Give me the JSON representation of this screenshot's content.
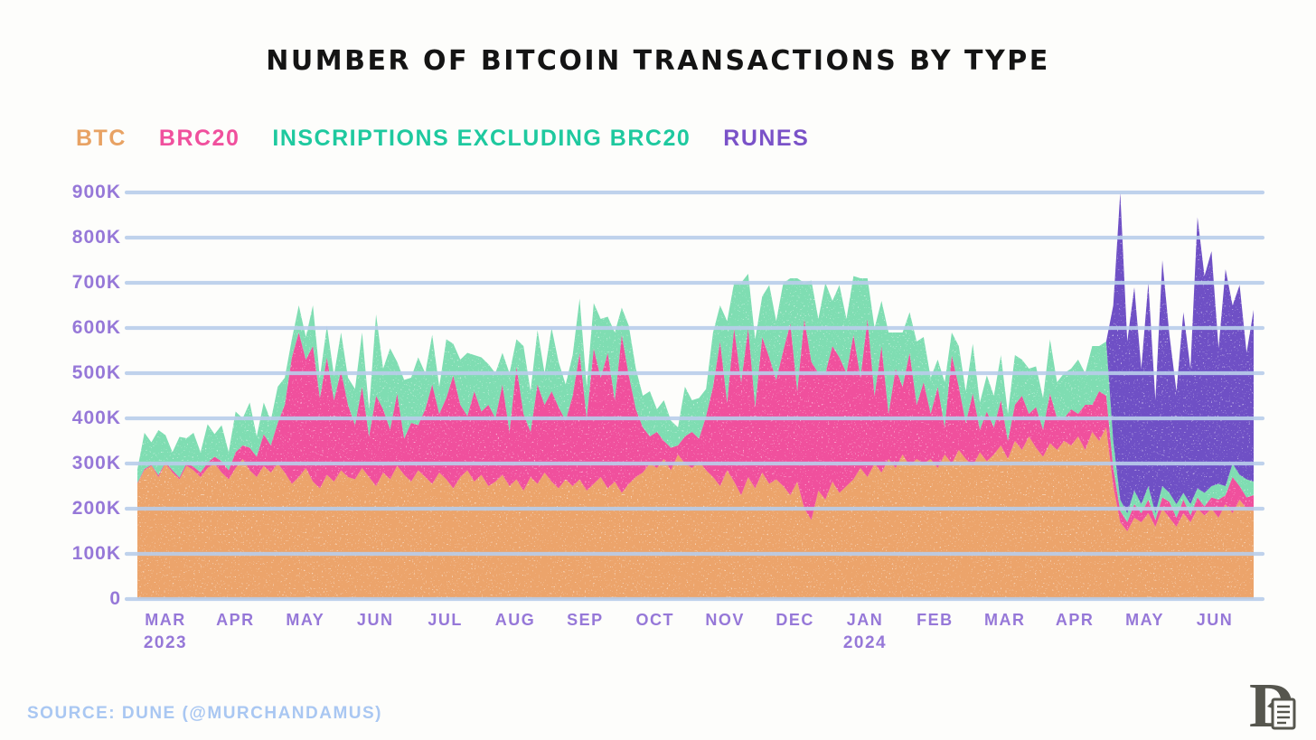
{
  "title": "NUMBER OF BITCOIN TRANSACTIONS BY TYPE",
  "source": "SOURCE: DUNE (@MURCHANDAMUS)",
  "colors": {
    "background": "#FDFDFB",
    "title": "#141414",
    "grid": "#B9CEEB",
    "axis_label": "#9678D8",
    "source_text": "#A9C7F2",
    "logo": "#56564E"
  },
  "chart_data": {
    "type": "area",
    "stacked": true,
    "grid": "horizontal",
    "legend_position": "top-left",
    "note": "values in thousands of transactions per day, estimated from chart at ~3-day intervals, Mar 2023 - Jun 2024",
    "ylabel": "",
    "xlabel": "",
    "ylim": [
      0,
      900
    ],
    "y_ticks": [
      "0",
      "100K",
      "200K",
      "300K",
      "400K",
      "500K",
      "600K",
      "700K",
      "800K",
      "900K"
    ],
    "x_ticks": [
      {
        "label": "MAR",
        "year": "2023"
      },
      {
        "label": "APR"
      },
      {
        "label": "MAY"
      },
      {
        "label": "JUN"
      },
      {
        "label": "JUL"
      },
      {
        "label": "AUG"
      },
      {
        "label": "SEP"
      },
      {
        "label": "OCT"
      },
      {
        "label": "NOV"
      },
      {
        "label": "DEC"
      },
      {
        "label": "JAN",
        "year": "2024"
      },
      {
        "label": "FEB"
      },
      {
        "label": "MAR"
      },
      {
        "label": "APR"
      },
      {
        "label": "MAY"
      },
      {
        "label": "JUN"
      }
    ],
    "series": [
      {
        "id": "btc",
        "label": "BTC",
        "color": "#ECA46B",
        "legend_color": "#E8A263",
        "values": [
          255,
          285,
          295,
          270,
          300,
          280,
          265,
          295,
          285,
          270,
          290,
          300,
          280,
          265,
          290,
          310,
          285,
          270,
          295,
          280,
          300,
          280,
          255,
          270,
          290,
          260,
          245,
          275,
          260,
          285,
          270,
          265,
          290,
          270,
          250,
          280,
          265,
          295,
          275,
          260,
          285,
          270,
          255,
          280,
          265,
          245,
          270,
          285,
          260,
          275,
          250,
          260,
          275,
          250,
          265,
          240,
          270,
          255,
          280,
          260,
          245,
          265,
          250,
          265,
          240,
          255,
          270,
          245,
          260,
          235,
          255,
          270,
          280,
          300,
          290,
          310,
          285,
          320,
          300,
          290,
          305,
          285,
          270,
          250,
          285,
          260,
          230,
          270,
          245,
          280,
          255,
          265,
          250,
          230,
          260,
          200,
          175,
          240,
          220,
          260,
          235,
          250,
          265,
          290,
          270,
          300,
          280,
          310,
          290,
          320,
          295,
          310,
          300,
          310,
          290,
          320,
          300,
          330,
          310,
          295,
          325,
          305,
          320,
          340,
          310,
          350,
          330,
          360,
          335,
          315,
          345,
          330,
          350,
          340,
          360,
          330,
          370,
          350,
          380,
          250,
          170,
          150,
          180,
          170,
          190,
          160,
          200,
          180,
          160,
          190,
          170,
          200,
          185,
          200,
          180,
          210,
          190,
          220,
          200,
          195
        ]
      },
      {
        "id": "brc20",
        "label": "BRC20",
        "color": "#F0509D",
        "legend_color": "#F0509D",
        "values": [
          2,
          3,
          2,
          4,
          3,
          5,
          4,
          6,
          8,
          10,
          12,
          15,
          25,
          20,
          35,
          30,
          50,
          45,
          70,
          60,
          90,
          150,
          280,
          320,
          240,
          300,
          200,
          260,
          180,
          220,
          160,
          120,
          180,
          90,
          200,
          140,
          110,
          160,
          80,
          130,
          100,
          150,
          220,
          130,
          180,
          250,
          160,
          120,
          200,
          140,
          180,
          140,
          200,
          120,
          250,
          170,
          100,
          220,
          150,
          200,
          180,
          130,
          200,
          280,
          160,
          300,
          220,
          300,
          180,
          350,
          240,
          150,
          100,
          60,
          80,
          40,
          50,
          20,
          60,
          80,
          50,
          120,
          200,
          320,
          150,
          340,
          250,
          330,
          180,
          300,
          280,
          220,
          300,
          380,
          200,
          420,
          350,
          260,
          280,
          300,
          300,
          250,
          320,
          200,
          350,
          150,
          280,
          100,
          220,
          150,
          250,
          120,
          180,
          100,
          180,
          60,
          240,
          140,
          80,
          160,
          50,
          110,
          60,
          100,
          40,
          80,
          120,
          50,
          90,
          60,
          110,
          70,
          50,
          80,
          50,
          100,
          60,
          110,
          70,
          40,
          25,
          20,
          30,
          20,
          30,
          15,
          25,
          35,
          20,
          30,
          15,
          25,
          20,
          25,
          40,
          20,
          80,
          30,
          25,
          35
        ]
      },
      {
        "id": "inscriptions",
        "label": "INSCRIPTIONS EXCLUDING BRC20",
        "color": "#7FDDB2",
        "legend_color": "#1EC99F",
        "values": [
          30,
          80,
          50,
          100,
          60,
          40,
          90,
          55,
          75,
          45,
          85,
          50,
          80,
          40,
          90,
          60,
          100,
          45,
          70,
          55,
          80,
          60,
          40,
          60,
          50,
          90,
          45,
          70,
          55,
          85,
          60,
          80,
          120,
          60,
          180,
          90,
          180,
          70,
          130,
          100,
          150,
          80,
          110,
          60,
          130,
          70,
          100,
          140,
          80,
          120,
          90,
          100,
          70,
          130,
          60,
          150,
          90,
          120,
          70,
          140,
          100,
          80,
          90,
          120,
          70,
          100,
          130,
          80,
          150,
          60,
          110,
          90,
          70,
          100,
          50,
          90,
          60,
          40,
          110,
          70,
          90,
          60,
          120,
          80,
          180,
          100,
          220,
          120,
          150,
          90,
          160,
          130,
          150,
          100,
          250,
          80,
          180,
          120,
          200,
          100,
          160,
          120,
          130,
          220,
          90,
          150,
          100,
          180,
          80,
          120,
          90,
          140,
          100,
          80,
          60,
          100,
          50,
          90,
          70,
          110,
          60,
          80,
          70,
          100,
          60,
          110,
          80,
          100,
          90,
          70,
          120,
          80,
          100,
          90,
          120,
          70,
          130,
          100,
          120,
          60,
          25,
          20,
          30,
          20,
          30,
          15,
          25,
          20,
          30,
          15,
          25,
          20,
          30,
          25,
          35,
          20,
          30,
          25,
          40,
          30
        ]
      },
      {
        "id": "runes",
        "label": "RUNES",
        "color": "#6F50C5",
        "legend_color": "#7A52C8",
        "values": [
          0,
          0,
          0,
          0,
          0,
          0,
          0,
          0,
          0,
          0,
          0,
          0,
          0,
          0,
          0,
          0,
          0,
          0,
          0,
          0,
          0,
          0,
          0,
          0,
          0,
          0,
          0,
          0,
          0,
          0,
          0,
          0,
          0,
          0,
          0,
          0,
          0,
          0,
          0,
          0,
          0,
          0,
          0,
          0,
          0,
          0,
          0,
          0,
          0,
          0,
          0,
          0,
          0,
          0,
          0,
          0,
          0,
          0,
          0,
          0,
          0,
          0,
          0,
          0,
          0,
          0,
          0,
          0,
          0,
          0,
          0,
          0,
          0,
          0,
          0,
          0,
          0,
          0,
          0,
          0,
          0,
          0,
          0,
          0,
          0,
          0,
          0,
          0,
          0,
          0,
          0,
          0,
          0,
          0,
          0,
          0,
          0,
          0,
          0,
          0,
          0,
          0,
          0,
          0,
          0,
          0,
          0,
          0,
          0,
          0,
          0,
          0,
          0,
          0,
          0,
          0,
          0,
          0,
          0,
          0,
          0,
          0,
          0,
          0,
          0,
          0,
          0,
          0,
          0,
          0,
          0,
          0,
          0,
          0,
          0,
          0,
          0,
          0,
          0,
          300,
          680,
          380,
          450,
          300,
          450,
          250,
          500,
          350,
          250,
          400,
          300,
          600,
          480,
          520,
          300,
          480,
          350,
          420,
          280,
          380
        ]
      }
    ]
  }
}
